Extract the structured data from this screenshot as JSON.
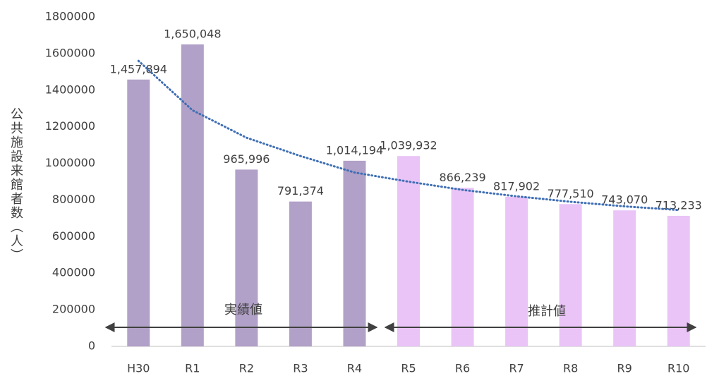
{
  "chart_data": {
    "type": "bar",
    "y_axis_label": "公共施設来館者数（人）",
    "categories": [
      "H30",
      "R1",
      "R2",
      "R3",
      "R4",
      "R5",
      "R6",
      "R7",
      "R8",
      "R9",
      "R10"
    ],
    "values": [
      1457894,
      1650048,
      965996,
      791374,
      1014194,
      1039932,
      866239,
      817902,
      777510,
      743070,
      713233
    ],
    "value_labels": [
      "1,457,894",
      "1,650,048",
      "965,996",
      "791,374",
      "1,014,194",
      "1,039,932",
      "866,239",
      "817,902",
      "777,510",
      "743,070",
      "713,233"
    ],
    "colors": [
      "#b1a0c7",
      "#b1a0c7",
      "#b1a0c7",
      "#b1a0c7",
      "#b1a0c7",
      "#eac4f7",
      "#eac4f7",
      "#eac4f7",
      "#eac4f7",
      "#eac4f7",
      "#eac4f7"
    ],
    "trendline": {
      "color": "#3f6fb5",
      "values": [
        1560000,
        1290000,
        1140000,
        1040000,
        950000,
        900000,
        855000,
        820000,
        790000,
        765000,
        745000
      ]
    },
    "annotations": [
      "実績値",
      "推計値"
    ],
    "ylim": [
      0,
      1800000
    ],
    "yticks": [
      0,
      200000,
      400000,
      600000,
      800000,
      1000000,
      1200000,
      1400000,
      1600000,
      1800000
    ],
    "grid": false
  }
}
